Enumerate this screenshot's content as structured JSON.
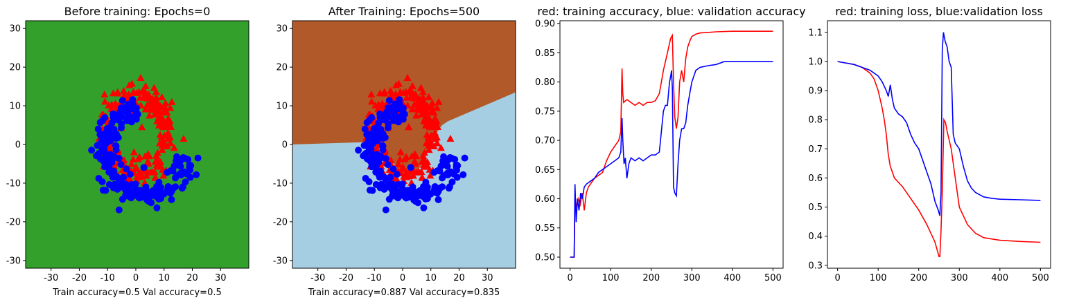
{
  "chart_data": [
    {
      "type": "scatter",
      "title": "Before training: Epochs=0",
      "xlabel": "Train accuracy=0.5 Val accuracy=0.5",
      "ylabel": "",
      "xlim": [
        -39,
        40
      ],
      "ylim": [
        -32,
        32
      ],
      "xticks": [
        -30,
        -20,
        -10,
        0,
        10,
        20,
        30
      ],
      "yticks": [
        -30,
        -20,
        -10,
        0,
        10,
        20,
        30
      ],
      "background_color": "#33a02c",
      "series": [
        {
          "marker": "triangle",
          "color": "#ff0000"
        },
        {
          "marker": "circle",
          "color": "#0000ff"
        }
      ]
    },
    {
      "type": "scatter",
      "title": "After Training: Epochs=500",
      "xlabel": "Train accuracy=0.887 Val accuracy=0.835",
      "ylabel": "",
      "xlim": [
        -39,
        40
      ],
      "ylim": [
        -32,
        32
      ],
      "xticks": [
        -30,
        -20,
        -10,
        0,
        10,
        20,
        30
      ],
      "yticks": [
        -30,
        -20,
        -10,
        0,
        10,
        20,
        30
      ],
      "region_colors": {
        "upper": "#b15928",
        "lower": "#a6cee3"
      },
      "decision_boundary": [
        [
          -39,
          0
        ],
        [
          -22,
          0.4
        ],
        [
          -12,
          0.6
        ],
        [
          -6,
          -2
        ],
        [
          -2,
          -6
        ],
        [
          1,
          -8
        ],
        [
          3,
          -8.8
        ],
        [
          6,
          -6
        ],
        [
          8,
          -3
        ],
        [
          10,
          0
        ],
        [
          12,
          3
        ],
        [
          14,
          5
        ],
        [
          16,
          6
        ],
        [
          24,
          8.5
        ],
        [
          32,
          11
        ],
        [
          40,
          13.5
        ]
      ],
      "series": [
        {
          "marker": "triangle",
          "color": "#ff0000"
        },
        {
          "marker": "circle",
          "color": "#0000ff"
        }
      ]
    },
    {
      "type": "line",
      "title": "red: training accuracy, blue: validation accuracy",
      "xlabel": "",
      "ylabel": "",
      "xlim": [
        -25,
        525
      ],
      "ylim": [
        0.481,
        0.905
      ],
      "xticks": [
        0,
        100,
        200,
        300,
        400,
        500
      ],
      "yticks": [
        0.5,
        0.55,
        0.6,
        0.65,
        0.7,
        0.75,
        0.8,
        0.85,
        0.9
      ],
      "series": [
        {
          "color": "#ff0000",
          "points": [
            [
              0,
              0.5
            ],
            [
              10,
              0.5
            ],
            [
              12,
              0.6
            ],
            [
              16,
              0.585
            ],
            [
              20,
              0.6
            ],
            [
              25,
              0.59
            ],
            [
              30,
              0.61
            ],
            [
              35,
              0.58
            ],
            [
              40,
              0.61
            ],
            [
              45,
              0.62
            ],
            [
              50,
              0.625
            ],
            [
              60,
              0.635
            ],
            [
              70,
              0.64
            ],
            [
              80,
              0.645
            ],
            [
              90,
              0.665
            ],
            [
              100,
              0.68
            ],
            [
              110,
              0.69
            ],
            [
              120,
              0.7
            ],
            [
              125,
              0.715
            ],
            [
              128,
              0.823
            ],
            [
              130,
              0.78
            ],
            [
              132,
              0.765
            ],
            [
              140,
              0.77
            ],
            [
              150,
              0.765
            ],
            [
              160,
              0.76
            ],
            [
              170,
              0.765
            ],
            [
              180,
              0.76
            ],
            [
              190,
              0.765
            ],
            [
              200,
              0.765
            ],
            [
              210,
              0.768
            ],
            [
              220,
              0.78
            ],
            [
              230,
              0.82
            ],
            [
              240,
              0.85
            ],
            [
              248,
              0.875
            ],
            [
              252,
              0.88
            ],
            [
              255,
              0.8
            ],
            [
              258,
              0.74
            ],
            [
              262,
              0.72
            ],
            [
              266,
              0.74
            ],
            [
              270,
              0.8
            ],
            [
              275,
              0.82
            ],
            [
              280,
              0.8
            ],
            [
              285,
              0.84
            ],
            [
              290,
              0.86
            ],
            [
              295,
              0.87
            ],
            [
              300,
              0.878
            ],
            [
              310,
              0.882
            ],
            [
              320,
              0.884
            ],
            [
              340,
              0.885
            ],
            [
              360,
              0.886
            ],
            [
              400,
              0.887
            ],
            [
              450,
              0.887
            ],
            [
              500,
              0.887
            ]
          ]
        },
        {
          "color": "#0000ff",
          "points": [
            [
              0,
              0.5
            ],
            [
              10,
              0.5
            ],
            [
              12,
              0.625
            ],
            [
              15,
              0.56
            ],
            [
              18,
              0.6
            ],
            [
              22,
              0.58
            ],
            [
              26,
              0.61
            ],
            [
              30,
              0.6
            ],
            [
              35,
              0.62
            ],
            [
              40,
              0.625
            ],
            [
              50,
              0.63
            ],
            [
              60,
              0.635
            ],
            [
              70,
              0.645
            ],
            [
              80,
              0.65
            ],
            [
              90,
              0.655
            ],
            [
              100,
              0.66
            ],
            [
              110,
              0.665
            ],
            [
              120,
              0.67
            ],
            [
              125,
              0.68
            ],
            [
              128,
              0.738
            ],
            [
              130,
              0.7
            ],
            [
              133,
              0.66
            ],
            [
              136,
              0.67
            ],
            [
              140,
              0.635
            ],
            [
              145,
              0.66
            ],
            [
              150,
              0.67
            ],
            [
              160,
              0.665
            ],
            [
              170,
              0.67
            ],
            [
              180,
              0.665
            ],
            [
              190,
              0.67
            ],
            [
              200,
              0.675
            ],
            [
              210,
              0.675
            ],
            [
              220,
              0.68
            ],
            [
              230,
              0.75
            ],
            [
              235,
              0.76
            ],
            [
              240,
              0.76
            ],
            [
              245,
              0.8
            ],
            [
              248,
              0.81
            ],
            [
              250,
              0.82
            ],
            [
              252,
              0.79
            ],
            [
              255,
              0.62
            ],
            [
              258,
              0.61
            ],
            [
              262,
              0.605
            ],
            [
              266,
              0.66
            ],
            [
              270,
              0.7
            ],
            [
              275,
              0.72
            ],
            [
              280,
              0.72
            ],
            [
              285,
              0.73
            ],
            [
              290,
              0.76
            ],
            [
              295,
              0.78
            ],
            [
              300,
              0.8
            ],
            [
              310,
              0.82
            ],
            [
              320,
              0.825
            ],
            [
              340,
              0.828
            ],
            [
              360,
              0.83
            ],
            [
              380,
              0.835
            ],
            [
              400,
              0.835
            ],
            [
              500,
              0.835
            ]
          ]
        }
      ]
    },
    {
      "type": "line",
      "title": "red: training loss, blue:validation loss",
      "xlabel": "",
      "ylabel": "",
      "xlim": [
        -25,
        525
      ],
      "ylim": [
        0.29,
        1.14
      ],
      "xticks": [
        0,
        100,
        200,
        300,
        400,
        500
      ],
      "yticks": [
        0.3,
        0.4,
        0.5,
        0.6,
        0.7,
        0.8,
        0.9,
        1.0,
        1.1
      ],
      "series": [
        {
          "color": "#ff0000",
          "points": [
            [
              0,
              1.0
            ],
            [
              20,
              0.995
            ],
            [
              40,
              0.99
            ],
            [
              60,
              0.98
            ],
            [
              80,
              0.96
            ],
            [
              90,
              0.94
            ],
            [
              100,
              0.9
            ],
            [
              110,
              0.84
            ],
            [
              115,
              0.8
            ],
            [
              120,
              0.75
            ],
            [
              125,
              0.68
            ],
            [
              130,
              0.64
            ],
            [
              140,
              0.6
            ],
            [
              160,
              0.57
            ],
            [
              180,
              0.53
            ],
            [
              200,
              0.49
            ],
            [
              220,
              0.44
            ],
            [
              240,
              0.38
            ],
            [
              250,
              0.33
            ],
            [
              252,
              0.33
            ],
            [
              255,
              0.42
            ],
            [
              258,
              0.55
            ],
            [
              262,
              0.8
            ],
            [
              266,
              0.79
            ],
            [
              270,
              0.76
            ],
            [
              280,
              0.7
            ],
            [
              290,
              0.6
            ],
            [
              300,
              0.5
            ],
            [
              320,
              0.44
            ],
            [
              340,
              0.41
            ],
            [
              360,
              0.395
            ],
            [
              400,
              0.386
            ],
            [
              450,
              0.382
            ],
            [
              500,
              0.379
            ]
          ]
        },
        {
          "color": "#0000ff",
          "points": [
            [
              0,
              1.0
            ],
            [
              20,
              0.995
            ],
            [
              40,
              0.99
            ],
            [
              60,
              0.98
            ],
            [
              80,
              0.97
            ],
            [
              100,
              0.95
            ],
            [
              110,
              0.93
            ],
            [
              120,
              0.9
            ],
            [
              125,
              0.88
            ],
            [
              130,
              0.92
            ],
            [
              135,
              0.87
            ],
            [
              140,
              0.84
            ],
            [
              150,
              0.82
            ],
            [
              160,
              0.81
            ],
            [
              170,
              0.79
            ],
            [
              180,
              0.75
            ],
            [
              190,
              0.72
            ],
            [
              200,
              0.7
            ],
            [
              210,
              0.66
            ],
            [
              220,
              0.62
            ],
            [
              230,
              0.58
            ],
            [
              240,
              0.52
            ],
            [
              248,
              0.49
            ],
            [
              252,
              0.47
            ],
            [
              255,
              0.55
            ],
            [
              258,
              1.04
            ],
            [
              261,
              1.1
            ],
            [
              265,
              1.07
            ],
            [
              270,
              1.05
            ],
            [
              275,
              1.0
            ],
            [
              280,
              0.98
            ],
            [
              285,
              0.75
            ],
            [
              290,
              0.72
            ],
            [
              295,
              0.71
            ],
            [
              300,
              0.7
            ],
            [
              310,
              0.64
            ],
            [
              320,
              0.59
            ],
            [
              330,
              0.565
            ],
            [
              340,
              0.55
            ],
            [
              360,
              0.535
            ],
            [
              380,
              0.53
            ],
            [
              400,
              0.527
            ],
            [
              450,
              0.525
            ],
            [
              500,
              0.523
            ]
          ]
        }
      ]
    }
  ]
}
